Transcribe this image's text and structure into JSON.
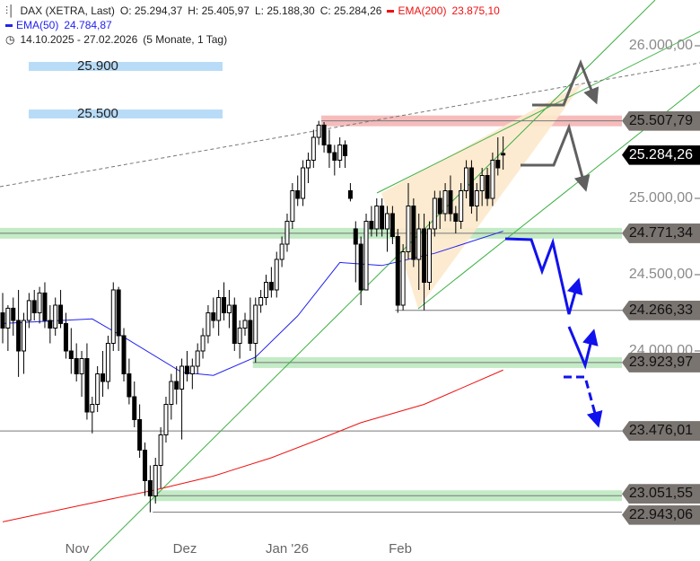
{
  "header": {
    "icon": "candlestick-icon",
    "symbol": "DAX (XETRA, Last)",
    "open": "O: 25.294,37",
    "high": "H: 25.405,97",
    "low": "L: 25.188,30",
    "close": "C: 25.284,26",
    "ema200_label": "EMA(200)",
    "ema200_value": "23.875,10",
    "ema50_label": "EMA(50)",
    "ema50_value": "24.784,87",
    "clock_icon": "clock-icon",
    "range": "14.10.2025 - 27.02.2026",
    "span": "(5 Monate, 1 Tag)"
  },
  "colors": {
    "ema200": "#ee1111",
    "ema50": "#2222ee",
    "up": "#ffffff",
    "down": "#000000",
    "trend": "#3cb043",
    "zone_green": "#c3ebc6",
    "zone_red": "#f6bcbc",
    "wedge": "#fde9cc",
    "arrow_gray": "#606060",
    "arrow_blue": "#1111ee"
  },
  "notes": [
    {
      "label": "25.900"
    },
    {
      "label": "25.500"
    }
  ],
  "chart_data": {
    "type": "candlestick",
    "title": "DAX (XETRA, Last)",
    "ylim": [
      22850,
      26250
    ],
    "y_ticks": [
      {
        "label": "26.000,00",
        "value": 26000
      },
      {
        "label": "25.000,00",
        "value": 25000
      },
      {
        "label": "24.500,00",
        "value": 24500
      },
      {
        "label": "24.000,00",
        "value": 24000
      }
    ],
    "x_ticks": [
      {
        "label": "Nov",
        "index": 14
      },
      {
        "label": "Dez",
        "index": 35
      },
      {
        "label": "Jan '26",
        "index": 54
      },
      {
        "label": "Feb",
        "index": 76
      }
    ],
    "ohlc": [
      [
        24250,
        24380,
        24050,
        24150
      ],
      [
        24150,
        24300,
        24000,
        24280
      ],
      [
        24280,
        24350,
        24100,
        24200
      ],
      [
        24200,
        24400,
        23830,
        24000
      ],
      [
        24000,
        24250,
        23850,
        24200
      ],
      [
        24200,
        24380,
        24150,
        24330
      ],
      [
        24330,
        24400,
        24200,
        24250
      ],
      [
        24250,
        24420,
        24180,
        24380
      ],
      [
        24380,
        24450,
        24150,
        24200
      ],
      [
        24200,
        24300,
        24050,
        24150
      ],
      [
        24150,
        24350,
        24100,
        24300
      ],
      [
        24300,
        24400,
        24150,
        24180
      ],
      [
        24180,
        24250,
        23950,
        24000
      ],
      [
        24000,
        24150,
        23850,
        23950
      ],
      [
        23950,
        24050,
        23800,
        23850
      ],
      [
        23850,
        24000,
        23700,
        23950
      ],
      [
        23950,
        24050,
        23550,
        23600
      ],
      [
        23600,
        23700,
        23460,
        23650
      ],
      [
        23650,
        23900,
        23600,
        23850
      ],
      [
        23850,
        24000,
        23700,
        23800
      ],
      [
        23800,
        24100,
        23750,
        24050
      ],
      [
        24050,
        24450,
        24000,
        24400
      ],
      [
        24400,
        24420,
        24000,
        24100
      ],
      [
        24100,
        24150,
        23800,
        23850
      ],
      [
        23850,
        23950,
        23650,
        23700
      ],
      [
        23700,
        23800,
        23500,
        23550
      ],
      [
        23550,
        23650,
        23300,
        23350
      ],
      [
        23350,
        23400,
        23050,
        23150
      ],
      [
        23150,
        23250,
        22943,
        23050
      ],
      [
        23050,
        23300,
        23000,
        23250
      ],
      [
        23250,
        23500,
        23100,
        23450
      ],
      [
        23450,
        23700,
        23400,
        23650
      ],
      [
        23650,
        23850,
        23550,
        23800
      ],
      [
        23800,
        23900,
        23650,
        23750
      ],
      [
        23750,
        23950,
        23420,
        23900
      ],
      [
        23900,
        24000,
        23800,
        23850
      ],
      [
        23850,
        23950,
        23750,
        23900
      ],
      [
        23900,
        24050,
        23850,
        24000
      ],
      [
        24000,
        24150,
        23950,
        24100
      ],
      [
        24100,
        24300,
        24050,
        24250
      ],
      [
        24250,
        24350,
        24150,
        24200
      ],
      [
        24200,
        24400,
        24100,
        24350
      ],
      [
        24350,
        24450,
        24200,
        24250
      ],
      [
        24250,
        24400,
        24150,
        24300
      ],
      [
        24300,
        24350,
        24000,
        24050
      ],
      [
        24050,
        24200,
        23950,
        24150
      ],
      [
        24150,
        24250,
        24100,
        24200
      ],
      [
        24200,
        24350,
        24000,
        24050
      ],
      [
        24050,
        24350,
        23924,
        24300
      ],
      [
        24300,
        24400,
        24250,
        24350
      ],
      [
        24350,
        24500,
        24300,
        24450
      ],
      [
        24450,
        24550,
        24350,
        24400
      ],
      [
        24400,
        24650,
        24350,
        24600
      ],
      [
        24600,
        24750,
        24550,
        24700
      ],
      [
        24700,
        24900,
        24650,
        24850
      ],
      [
        24850,
        25100,
        24800,
        25050
      ],
      [
        25050,
        25150,
        24950,
        25000
      ],
      [
        25000,
        25250,
        24950,
        25200
      ],
      [
        25200,
        25300,
        25100,
        25250
      ],
      [
        25250,
        25450,
        25200,
        25400
      ],
      [
        25400,
        25508,
        25350,
        25480
      ],
      [
        25480,
        25500,
        25300,
        25350
      ],
      [
        25350,
        25450,
        25200,
        25300
      ],
      [
        25300,
        25350,
        25150,
        25250
      ],
      [
        25250,
        25400,
        25200,
        25350
      ],
      [
        25350,
        25380,
        25200,
        25280
      ],
      [
        25050,
        25100,
        24980,
        25000
      ],
      [
        24800,
        24850,
        24450,
        24700
      ],
      [
        24700,
        24750,
        24300,
        24400
      ],
      [
        24400,
        24900,
        24400,
        24850
      ],
      [
        24850,
        24950,
        24750,
        24800
      ],
      [
        24800,
        25000,
        24750,
        24950
      ],
      [
        24950,
        25000,
        24750,
        24800
      ],
      [
        24800,
        24950,
        24650,
        24900
      ],
      [
        24900,
        24950,
        24700,
        24750
      ],
      [
        24750,
        24800,
        24250,
        24300
      ],
      [
        24300,
        24700,
        24266,
        24650
      ],
      [
        24650,
        25100,
        24600,
        24950
      ],
      [
        24950,
        25000,
        24550,
        24600
      ],
      [
        24600,
        24900,
        24400,
        24800
      ],
      [
        24800,
        24900,
        24266,
        24450
      ],
      [
        24450,
        24850,
        24400,
        24800
      ],
      [
        24800,
        25050,
        24750,
        25000
      ],
      [
        25000,
        25050,
        24800,
        24900
      ],
      [
        24900,
        25100,
        24850,
        25050
      ],
      [
        25050,
        25150,
        24850,
        24900
      ],
      [
        24900,
        24950,
        24771,
        24850
      ],
      [
        24850,
        25100,
        24800,
        25050
      ],
      [
        25050,
        25250,
        25000,
        25200
      ],
      [
        25200,
        25250,
        24900,
        24950
      ],
      [
        24950,
        25100,
        24850,
        25050
      ],
      [
        25050,
        25200,
        24950,
        25150
      ],
      [
        25150,
        25200,
        24950,
        25000
      ],
      [
        25000,
        25300,
        24950,
        25250
      ],
      [
        25250,
        25400,
        25150,
        25200
      ],
      [
        25294.37,
        25405.97,
        25188.3,
        25284.26
      ]
    ],
    "ema50": [
      [
        0,
        24180
      ],
      [
        17,
        24210
      ],
      [
        24,
        24070
      ],
      [
        34,
        23860
      ],
      [
        40,
        23840
      ],
      [
        48,
        23960
      ],
      [
        56,
        24230
      ],
      [
        64,
        24580
      ],
      [
        72,
        24560
      ],
      [
        82,
        24640
      ],
      [
        95,
        24785
      ]
    ],
    "ema200": [
      [
        0,
        22880
      ],
      [
        15,
        22990
      ],
      [
        29,
        23090
      ],
      [
        40,
        23180
      ],
      [
        51,
        23300
      ],
      [
        60,
        23420
      ],
      [
        68,
        23530
      ],
      [
        80,
        23650
      ],
      [
        95,
        23875
      ]
    ],
    "levels": [
      {
        "label": "25.507,79",
        "value": 25507.79,
        "zone": "red",
        "from": 61
      },
      {
        "label": "25.284,26",
        "value": 25284.26,
        "current": true
      },
      {
        "label": "24.771,34",
        "value": 24771.34,
        "zone": "green",
        "from": 0
      },
      {
        "label": "24.266,33",
        "value": 24266.33,
        "from": 75
      },
      {
        "label": "23.923,97",
        "value": 23923.97,
        "zone": "green",
        "from": 48
      },
      {
        "label": "23.476,01",
        "value": 23476.01,
        "from": 0
      },
      {
        "label": "23.051,55",
        "value": 23051.55,
        "zone": "green",
        "from": 29
      },
      {
        "label": "22.943,06",
        "value": 22943.06,
        "from": 29
      }
    ]
  }
}
